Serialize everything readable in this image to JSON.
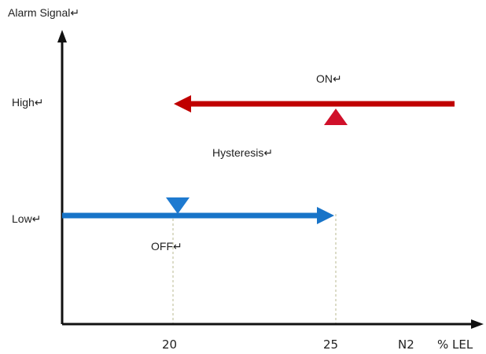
{
  "y_axis_label": "Alarm Signal↵",
  "level_high": "High↵",
  "level_low": "Low↵",
  "on_label": "ON↵",
  "off_label": "OFF↵",
  "hysteresis_label": "Hysteresis↵",
  "x_ticks": [
    "20",
    "25"
  ],
  "x_unit_gas": "N2",
  "x_unit": "% LEL",
  "colors": {
    "axis": "#111111",
    "on_path": "#c00000",
    "off_path": "#1874c8",
    "gradient_top": "#e83256",
    "gradient_mid": "#8a58b8",
    "gradient_bottom": "#4464c8",
    "guide": "#b8b890"
  }
}
